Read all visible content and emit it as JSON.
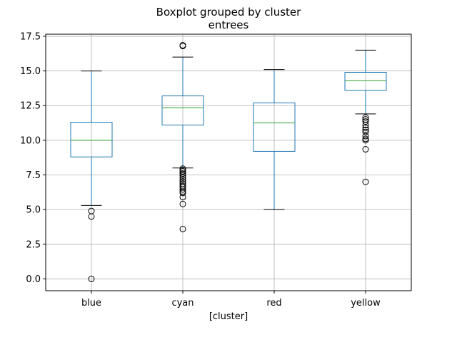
{
  "chart_data": {
    "type": "box",
    "title": "Boxplot grouped by cluster",
    "subtitle": "entrees",
    "xlabel": "[cluster]",
    "ylabel": "",
    "ylim": [
      -0.85,
      17.65
    ],
    "yticks": [
      "0.0",
      "2.5",
      "5.0",
      "7.5",
      "10.0",
      "12.5",
      "15.0",
      "17.5"
    ],
    "grid": true,
    "categories": [
      "blue",
      "cyan",
      "red",
      "yellow"
    ],
    "boxes": [
      {
        "category": "blue",
        "whisker_low": 5.3,
        "q1": 8.8,
        "median": 10.0,
        "q3": 11.3,
        "whisker_high": 15.0,
        "outliers": [
          4.9,
          4.5,
          0.0
        ]
      },
      {
        "category": "cyan",
        "whisker_low": 8.0,
        "q1": 11.1,
        "median": 12.35,
        "q3": 13.2,
        "whisker_high": 16.0,
        "outliers": [
          16.8,
          16.85,
          7.95,
          7.85,
          7.75,
          7.6,
          7.45,
          7.3,
          7.15,
          7.0,
          6.85,
          6.7,
          6.6,
          6.45,
          6.3,
          6.2,
          5.9,
          5.4,
          3.6
        ]
      },
      {
        "category": "red",
        "whisker_low": 5.0,
        "q1": 9.2,
        "median": 11.25,
        "q3": 12.7,
        "whisker_high": 15.1,
        "outliers": []
      },
      {
        "category": "yellow",
        "whisker_low": 11.9,
        "q1": 13.6,
        "median": 14.3,
        "q3": 14.9,
        "whisker_high": 16.5,
        "outliers": [
          11.65,
          11.5,
          11.35,
          11.1,
          10.9,
          10.75,
          10.6,
          10.3,
          10.1,
          10.0,
          9.35,
          7.0
        ]
      }
    ],
    "colors": {
      "box": "#1f77b4",
      "median": "#2ca02c",
      "whisker": "#1f77b4",
      "cap": "#000000",
      "outlier": "#000000",
      "grid": "#b0b0b0"
    }
  }
}
